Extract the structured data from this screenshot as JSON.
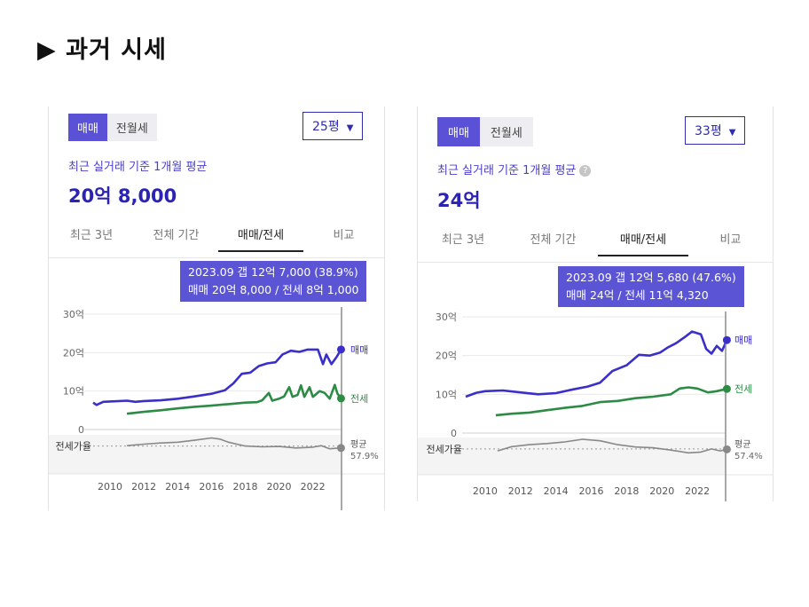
{
  "slide": {
    "title": "▶ 과거 시세"
  },
  "panels": [
    {
      "tabs": [
        "매매",
        "전월세"
      ],
      "size": "25평",
      "subtitle": "최근 실거래 기준 1개월 평균",
      "price": "20억 8,000",
      "nav": [
        "최근 3년",
        "전체 기간",
        "매매/전세",
        "비교"
      ],
      "tooltip": {
        "line1": "2023.09  갭 12억 7,000 (38.9%)",
        "line2": "매매 20억 8,000 / 전세 8억 1,000"
      },
      "axis": {
        "y_ticks": [
          "30억",
          "20억",
          "10억",
          "0"
        ],
        "x_ticks": [
          "2010",
          "2012",
          "2014",
          "2016",
          "2018",
          "2020",
          "2022"
        ],
        "ratio_label": "전세가율",
        "sale_label": "매매",
        "jeonse_label": "전세",
        "avg_label": "평균",
        "avg_value": "57.9%"
      }
    },
    {
      "tabs": [
        "매매",
        "전월세"
      ],
      "size": "33평",
      "subtitle": "최근 실거래 기준 1개월 평균",
      "price": "24억",
      "nav": [
        "최근 3년",
        "전체 기간",
        "매매/전세",
        "비교"
      ],
      "tooltip": {
        "line1": "2023.09  갭 12억 5,680 (47.6%)",
        "line2": "매매 24억 / 전세 11억 4,320"
      },
      "axis": {
        "y_ticks": [
          "30억",
          "20억",
          "10억",
          "0"
        ],
        "x_ticks": [
          "2010",
          "2012",
          "2014",
          "2016",
          "2018",
          "2020",
          "2022"
        ],
        "ratio_label": "전세가율",
        "sale_label": "매매",
        "jeonse_label": "전세",
        "avg_label": "평균",
        "avg_value": "57.4%"
      }
    }
  ],
  "chart_data": [
    {
      "type": "line",
      "ylim": [
        0,
        30
      ],
      "xlim": [
        2009,
        2023.75
      ],
      "colors": {
        "sale": "#3a2fc9",
        "jeonse": "#2e8b46",
        "ratio": "#888888"
      },
      "series": [
        {
          "name": "매매",
          "points": [
            [
              2009.0,
              7
            ],
            [
              2009.2,
              6.4
            ],
            [
              2009.6,
              7.2
            ],
            [
              2010,
              7.3
            ],
            [
              2011,
              7.5
            ],
            [
              2011.5,
              7.2
            ],
            [
              2012,
              7.4
            ],
            [
              2013,
              7.6
            ],
            [
              2014,
              8
            ],
            [
              2015,
              8.6
            ],
            [
              2016,
              9.3
            ],
            [
              2016.8,
              10.2
            ],
            [
              2017.3,
              12
            ],
            [
              2017.8,
              14.5
            ],
            [
              2018.3,
              14.8
            ],
            [
              2018.8,
              16.5
            ],
            [
              2019.3,
              17.2
            ],
            [
              2019.8,
              17.5
            ],
            [
              2020.2,
              19.5
            ],
            [
              2020.7,
              20.5
            ],
            [
              2021.2,
              20.2
            ],
            [
              2021.7,
              20.8
            ],
            [
              2022.3,
              20.8
            ],
            [
              2022.6,
              17
            ],
            [
              2022.8,
              19.5
            ],
            [
              2023.1,
              17
            ],
            [
              2023.4,
              18.8
            ],
            [
              2023.67,
              20.8
            ]
          ]
        },
        {
          "name": "전세",
          "points": [
            [
              2011,
              4.1
            ],
            [
              2012,
              4.6
            ],
            [
              2013,
              5
            ],
            [
              2014,
              5.5
            ],
            [
              2015,
              5.9
            ],
            [
              2016,
              6.2
            ],
            [
              2017,
              6.6
            ],
            [
              2018,
              7
            ],
            [
              2018.7,
              7.1
            ],
            [
              2019,
              7.6
            ],
            [
              2019.4,
              9.5
            ],
            [
              2019.6,
              7.5
            ],
            [
              2020,
              8
            ],
            [
              2020.3,
              8.6
            ],
            [
              2020.6,
              11
            ],
            [
              2020.8,
              8.5
            ],
            [
              2021.1,
              9
            ],
            [
              2021.3,
              11.5
            ],
            [
              2021.5,
              8.5
            ],
            [
              2021.8,
              11
            ],
            [
              2022,
              8.5
            ],
            [
              2022.4,
              10
            ],
            [
              2022.7,
              9.5
            ],
            [
              2023,
              8
            ],
            [
              2023.3,
              11.6
            ],
            [
              2023.45,
              9.4
            ],
            [
              2023.67,
              8.1
            ]
          ]
        },
        {
          "name": "전세가율",
          "points": [
            [
              2011,
              -4.2
            ],
            [
              2012,
              -3.8
            ],
            [
              2013,
              -3.5
            ],
            [
              2014,
              -3.3
            ],
            [
              2015,
              -2.8
            ],
            [
              2016,
              -2.2
            ],
            [
              2016.5,
              -2.5
            ],
            [
              2017,
              -3.3
            ],
            [
              2018,
              -4.3
            ],
            [
              2019,
              -4.5
            ],
            [
              2020,
              -4.4
            ],
            [
              2021,
              -4.8
            ],
            [
              2022,
              -4.6
            ],
            [
              2022.5,
              -4.2
            ],
            [
              2023,
              -5
            ],
            [
              2023.67,
              -4.8
            ]
          ]
        }
      ]
    },
    {
      "type": "line",
      "ylim": [
        0,
        30
      ],
      "xlim": [
        2008.8,
        2023.8
      ],
      "colors": {
        "sale": "#3a2fc9",
        "jeonse": "#2e8b46",
        "ratio": "#888888"
      },
      "series": [
        {
          "name": "매매",
          "points": [
            [
              2008.9,
              9.4
            ],
            [
              2009.5,
              10.4
            ],
            [
              2010,
              10.8
            ],
            [
              2011,
              11
            ],
            [
              2012,
              10.5
            ],
            [
              2013,
              10
            ],
            [
              2014,
              10.3
            ],
            [
              2015,
              11.3
            ],
            [
              2015.8,
              12
            ],
            [
              2016.5,
              13
            ],
            [
              2017.2,
              16
            ],
            [
              2018,
              17.5
            ],
            [
              2018.7,
              20.2
            ],
            [
              2019.3,
              20
            ],
            [
              2019.9,
              20.8
            ],
            [
              2020.3,
              22
            ],
            [
              2020.8,
              23.2
            ],
            [
              2021.3,
              24.8
            ],
            [
              2021.7,
              26.2
            ],
            [
              2022.2,
              25.5
            ],
            [
              2022.5,
              21.7
            ],
            [
              2022.8,
              20.5
            ],
            [
              2023.1,
              22.5
            ],
            [
              2023.4,
              21.2
            ],
            [
              2023.67,
              24
            ]
          ]
        },
        {
          "name": "전세",
          "points": [
            [
              2010.6,
              4.6
            ],
            [
              2011.5,
              5
            ],
            [
              2012.5,
              5.3
            ],
            [
              2013.5,
              5.9
            ],
            [
              2014.5,
              6.5
            ],
            [
              2015.5,
              7
            ],
            [
              2016.5,
              8
            ],
            [
              2017.5,
              8.3
            ],
            [
              2018.5,
              9
            ],
            [
              2019.5,
              9.4
            ],
            [
              2020.5,
              10
            ],
            [
              2021,
              11.5
            ],
            [
              2021.5,
              11.8
            ],
            [
              2022,
              11.5
            ],
            [
              2022.6,
              10.5
            ],
            [
              2023.1,
              10.8
            ],
            [
              2023.67,
              11.4
            ]
          ]
        },
        {
          "name": "전세가율",
          "points": [
            [
              2010.7,
              -4.6
            ],
            [
              2011.5,
              -3.5
            ],
            [
              2012.5,
              -3
            ],
            [
              2013.5,
              -2.7
            ],
            [
              2014.5,
              -2.3
            ],
            [
              2015.5,
              -1.6
            ],
            [
              2016.5,
              -2
            ],
            [
              2017.5,
              -3
            ],
            [
              2018.5,
              -3.6
            ],
            [
              2019.5,
              -3.8
            ],
            [
              2020.5,
              -4.4
            ],
            [
              2021.5,
              -5.1
            ],
            [
              2022.2,
              -4.9
            ],
            [
              2022.8,
              -4.1
            ],
            [
              2023.3,
              -4.6
            ],
            [
              2023.67,
              -4.2
            ]
          ]
        }
      ]
    }
  ]
}
